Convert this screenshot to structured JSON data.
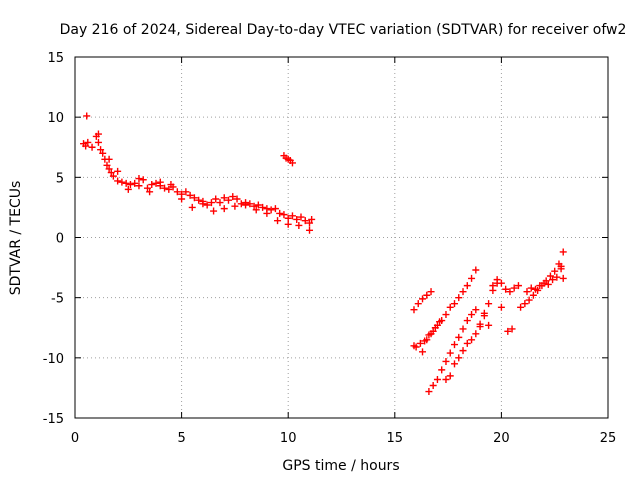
{
  "chart_data": {
    "type": "scatter",
    "title": "Day 216 of 2024, Sidereal Day-to-day VTEC variation (SDTVAR) for receiver ofw2",
    "xlabel": "GPS time / hours",
    "ylabel": "SDTVAR / TECUs",
    "xlim": [
      0,
      25
    ],
    "ylim": [
      -15,
      15
    ],
    "xticks": [
      0,
      5,
      10,
      15,
      20,
      25
    ],
    "yticks": [
      -15,
      -10,
      -5,
      0,
      5,
      10,
      15
    ],
    "grid": true,
    "marker": "+",
    "color": "#ff0000",
    "series": [
      {
        "name": "day-segment-1",
        "x": [
          0.4,
          0.5,
          0.6,
          0.8,
          1.0,
          1.1,
          1.2,
          1.3,
          1.4,
          1.5,
          1.6,
          1.7,
          1.8,
          2.0,
          2.2,
          2.4,
          2.6,
          2.8,
          3.0,
          3.2,
          3.4,
          3.6,
          3.8,
          4.0,
          4.2,
          4.4,
          4.6,
          4.8,
          5.0,
          5.2,
          5.4,
          5.6,
          5.8,
          6.0,
          6.2,
          6.4,
          6.6,
          6.8,
          7.0,
          7.2,
          7.4,
          7.6,
          7.8,
          8.0,
          8.2,
          8.4,
          8.6,
          8.8,
          9.0,
          9.2,
          9.4,
          9.6,
          9.8,
          10.0,
          10.2,
          10.4,
          10.6,
          10.8,
          11.0,
          11.1
        ],
        "y": [
          7.8,
          7.6,
          7.9,
          7.5,
          8.4,
          7.9,
          7.3,
          7.0,
          6.5,
          6.0,
          5.7,
          5.4,
          5.1,
          4.7,
          4.6,
          4.5,
          4.4,
          4.5,
          4.3,
          4.8,
          4.1,
          4.4,
          4.5,
          4.3,
          4.1,
          4.0,
          4.2,
          3.8,
          3.6,
          3.8,
          3.5,
          3.3,
          3.1,
          3.0,
          2.7,
          2.9,
          3.2,
          2.9,
          3.3,
          3.1,
          3.4,
          3.2,
          2.8,
          2.9,
          2.8,
          2.6,
          2.7,
          2.5,
          2.4,
          2.3,
          2.4,
          2.0,
          1.9,
          1.6,
          1.8,
          1.5,
          1.7,
          1.4,
          1.2,
          1.5
        ]
      },
      {
        "name": "day-segment-2",
        "x": [
          1.6,
          2.0,
          2.5,
          3.0,
          3.5,
          4.0,
          4.5,
          5.0,
          5.5,
          6.0,
          6.5,
          7.0,
          7.5,
          8.0,
          8.5,
          9.0,
          9.5,
          10.0,
          10.5,
          11.0
        ],
        "y": [
          6.5,
          5.5,
          4.0,
          4.9,
          3.8,
          4.6,
          4.4,
          3.2,
          2.5,
          2.8,
          2.2,
          2.4,
          2.6,
          2.7,
          2.3,
          2.0,
          1.4,
          1.1,
          1.0,
          0.6
        ]
      },
      {
        "name": "outliers",
        "x": [
          0.55,
          1.1,
          9.8,
          9.9,
          10.0,
          10.1,
          10.2
        ],
        "y": [
          10.1,
          8.6,
          6.8,
          6.6,
          6.5,
          6.4,
          6.2
        ]
      },
      {
        "name": "night-segment-1",
        "x": [
          15.9,
          16.0,
          16.2,
          16.4,
          16.6,
          16.8,
          17.0,
          17.2,
          17.4,
          17.6,
          17.8,
          18.0,
          18.2,
          18.4,
          18.6,
          18.8
        ],
        "y": [
          -9.0,
          -9.1,
          -8.8,
          -8.6,
          -8.1,
          -7.8,
          -7.3,
          -6.9,
          -6.4,
          -5.8,
          -5.5,
          -5.0,
          -4.5,
          -4.0,
          -3.4,
          -2.7
        ]
      },
      {
        "name": "night-segment-2",
        "x": [
          16.6,
          16.8,
          17.0,
          17.2,
          17.4,
          17.6,
          17.8,
          18.0,
          18.2,
          18.4,
          18.6,
          18.8
        ],
        "y": [
          -12.8,
          -12.3,
          -11.8,
          -11.0,
          -10.3,
          -9.6,
          -8.9,
          -8.3,
          -7.6,
          -6.9,
          -6.4,
          -6.0
        ]
      },
      {
        "name": "night-segment-3",
        "x": [
          17.4,
          17.6,
          17.8,
          18.0,
          18.2,
          18.4,
          18.6,
          18.8,
          19.0
        ],
        "y": [
          -11.8,
          -11.5,
          -10.5,
          -10.0,
          -9.4,
          -8.8,
          -8.5,
          -8.0,
          -7.4
        ]
      },
      {
        "name": "night-segment-4",
        "x": [
          15.9,
          16.1,
          16.3,
          16.5,
          16.7
        ],
        "y": [
          -6.0,
          -5.5,
          -5.1,
          -4.8,
          -4.5
        ]
      },
      {
        "name": "night-segment-5",
        "x": [
          16.3,
          16.5,
          16.7,
          16.9,
          17.1
        ],
        "y": [
          -9.5,
          -8.5,
          -8.0,
          -7.5,
          -7.0
        ]
      },
      {
        "name": "night-segment-6",
        "x": [
          19.0,
          19.2,
          19.4,
          19.6,
          19.8,
          20.0,
          20.2,
          20.4,
          20.6,
          20.8
        ],
        "y": [
          -7.2,
          -6.5,
          -5.5,
          -4.0,
          -3.5,
          -3.8,
          -4.3,
          -4.5,
          -4.2,
          -4.0
        ]
      },
      {
        "name": "night-segment-7",
        "x": [
          20.9,
          21.1,
          21.3,
          21.5,
          21.7,
          21.9,
          22.1,
          22.3,
          22.5,
          22.7,
          22.9
        ],
        "y": [
          -5.8,
          -5.5,
          -5.2,
          -4.8,
          -4.4,
          -4.0,
          -3.6,
          -3.2,
          -2.8,
          -2.2,
          -1.2
        ]
      },
      {
        "name": "night-segment-8",
        "x": [
          21.2,
          21.4,
          21.6,
          21.8,
          22.0,
          22.2,
          22.4,
          22.6,
          22.8
        ],
        "y": [
          -4.5,
          -4.2,
          -4.3,
          -4.0,
          -3.8,
          -3.9,
          -3.5,
          -3.3,
          -2.6
        ]
      },
      {
        "name": "night-scatter",
        "x": [
          19.2,
          19.4,
          19.6,
          19.8,
          20.0,
          20.3,
          20.5,
          22.8,
          22.9
        ],
        "y": [
          -6.3,
          -7.3,
          -4.4,
          -3.8,
          -5.8,
          -7.8,
          -7.6,
          -2.4,
          -3.4
        ]
      }
    ]
  }
}
